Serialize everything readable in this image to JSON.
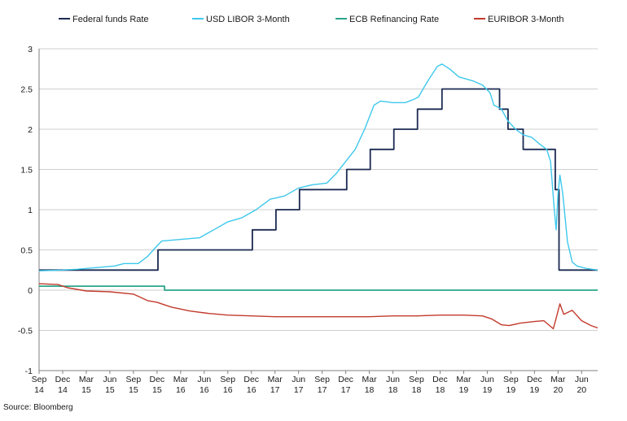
{
  "chart_data": {
    "type": "line",
    "source": "Source: Bloomberg",
    "ylim": [
      -1,
      3
    ],
    "yticks": [
      -1,
      -0.5,
      0,
      0.5,
      1,
      1.5,
      2,
      2.5,
      3
    ],
    "ytick_labels": [
      "-1",
      "-0.5",
      "0",
      "0.5",
      "1",
      "1.5",
      "2",
      "2.5",
      "3"
    ],
    "xlim": [
      2014.7,
      2020.62
    ],
    "grid": true,
    "legend_position": "top",
    "x_ticks": [
      {
        "x": 2014.7,
        "month": "Sep",
        "year": "14"
      },
      {
        "x": 2014.95,
        "month": "Dec",
        "year": "14"
      },
      {
        "x": 2015.2,
        "month": "Mar",
        "year": "15"
      },
      {
        "x": 2015.45,
        "month": "Jun",
        "year": "15"
      },
      {
        "x": 2015.7,
        "month": "Sep",
        "year": "15"
      },
      {
        "x": 2015.95,
        "month": "Dec",
        "year": "15"
      },
      {
        "x": 2016.2,
        "month": "Mar",
        "year": "16"
      },
      {
        "x": 2016.45,
        "month": "Jun",
        "year": "16"
      },
      {
        "x": 2016.7,
        "month": "Sep",
        "year": "16"
      },
      {
        "x": 2016.95,
        "month": "Dec",
        "year": "16"
      },
      {
        "x": 2017.2,
        "month": "Mar",
        "year": "17"
      },
      {
        "x": 2017.45,
        "month": "Jun",
        "year": "17"
      },
      {
        "x": 2017.7,
        "month": "Sep",
        "year": "17"
      },
      {
        "x": 2017.95,
        "month": "Dec",
        "year": "17"
      },
      {
        "x": 2018.2,
        "month": "Mar",
        "year": "18"
      },
      {
        "x": 2018.45,
        "month": "Jun",
        "year": "18"
      },
      {
        "x": 2018.7,
        "month": "Sep",
        "year": "18"
      },
      {
        "x": 2018.95,
        "month": "Dec",
        "year": "18"
      },
      {
        "x": 2019.2,
        "month": "Mar",
        "year": "19"
      },
      {
        "x": 2019.45,
        "month": "Jun",
        "year": "19"
      },
      {
        "x": 2019.7,
        "month": "Sep",
        "year": "19"
      },
      {
        "x": 2019.95,
        "month": "Dec",
        "year": "19"
      },
      {
        "x": 2020.2,
        "month": "Mar",
        "year": "20"
      },
      {
        "x": 2020.45,
        "month": "Jun",
        "year": "20"
      }
    ],
    "series": [
      {
        "name": "Federal funds Rate",
        "color": "#1b2a52",
        "step": true,
        "points": [
          [
            2014.7,
            0.25
          ],
          [
            2015.96,
            0.5
          ],
          [
            2016.96,
            0.75
          ],
          [
            2017.21,
            1.0
          ],
          [
            2017.46,
            1.25
          ],
          [
            2017.96,
            1.5
          ],
          [
            2018.21,
            1.75
          ],
          [
            2018.46,
            2.0
          ],
          [
            2018.71,
            2.25
          ],
          [
            2018.97,
            2.5
          ],
          [
            2019.58,
            2.25
          ],
          [
            2019.67,
            2.0
          ],
          [
            2019.83,
            1.75
          ],
          [
            2020.17,
            1.25
          ],
          [
            2020.21,
            0.25
          ],
          [
            2020.62,
            0.25
          ]
        ]
      },
      {
        "name": "USD LIBOR 3-Month",
        "color": "#3ec8ec",
        "step": false,
        "points": [
          [
            2014.7,
            0.24
          ],
          [
            2014.95,
            0.25
          ],
          [
            2015.1,
            0.26
          ],
          [
            2015.3,
            0.28
          ],
          [
            2015.5,
            0.3
          ],
          [
            2015.6,
            0.33
          ],
          [
            2015.75,
            0.33
          ],
          [
            2015.85,
            0.42
          ],
          [
            2015.95,
            0.55
          ],
          [
            2016.0,
            0.61
          ],
          [
            2016.2,
            0.63
          ],
          [
            2016.4,
            0.65
          ],
          [
            2016.55,
            0.75
          ],
          [
            2016.7,
            0.85
          ],
          [
            2016.85,
            0.9
          ],
          [
            2017.0,
            1.0
          ],
          [
            2017.15,
            1.13
          ],
          [
            2017.3,
            1.17
          ],
          [
            2017.45,
            1.27
          ],
          [
            2017.6,
            1.31
          ],
          [
            2017.75,
            1.33
          ],
          [
            2017.85,
            1.45
          ],
          [
            2017.95,
            1.6
          ],
          [
            2018.05,
            1.75
          ],
          [
            2018.15,
            2.0
          ],
          [
            2018.25,
            2.3
          ],
          [
            2018.32,
            2.35
          ],
          [
            2018.45,
            2.33
          ],
          [
            2018.58,
            2.33
          ],
          [
            2018.67,
            2.37
          ],
          [
            2018.72,
            2.4
          ],
          [
            2018.82,
            2.6
          ],
          [
            2018.92,
            2.78
          ],
          [
            2018.97,
            2.81
          ],
          [
            2019.05,
            2.75
          ],
          [
            2019.15,
            2.65
          ],
          [
            2019.3,
            2.6
          ],
          [
            2019.4,
            2.55
          ],
          [
            2019.48,
            2.45
          ],
          [
            2019.52,
            2.3
          ],
          [
            2019.6,
            2.25
          ],
          [
            2019.67,
            2.1
          ],
          [
            2019.75,
            2.0
          ],
          [
            2019.83,
            1.93
          ],
          [
            2019.92,
            1.9
          ],
          [
            2020.0,
            1.82
          ],
          [
            2020.08,
            1.75
          ],
          [
            2020.12,
            1.6
          ],
          [
            2020.16,
            1.0
          ],
          [
            2020.18,
            0.75
          ],
          [
            2020.2,
            1.2
          ],
          [
            2020.22,
            1.43
          ],
          [
            2020.25,
            1.2
          ],
          [
            2020.3,
            0.6
          ],
          [
            2020.35,
            0.35
          ],
          [
            2020.4,
            0.3
          ],
          [
            2020.5,
            0.27
          ],
          [
            2020.62,
            0.25
          ]
        ]
      },
      {
        "name": "ECB Refinancing Rate",
        "color": "#2aa58a",
        "step": true,
        "points": [
          [
            2014.7,
            0.05
          ],
          [
            2016.03,
            0.0
          ],
          [
            2020.62,
            0.0
          ]
        ]
      },
      {
        "name": "EURIBOR 3-Month",
        "color": "#c23a2c",
        "step": false,
        "points": [
          [
            2014.7,
            0.08
          ],
          [
            2014.9,
            0.07
          ],
          [
            2015.0,
            0.03
          ],
          [
            2015.2,
            -0.01
          ],
          [
            2015.45,
            -0.02
          ],
          [
            2015.7,
            -0.05
          ],
          [
            2015.85,
            -0.13
          ],
          [
            2015.95,
            -0.15
          ],
          [
            2016.1,
            -0.21
          ],
          [
            2016.3,
            -0.26
          ],
          [
            2016.5,
            -0.29
          ],
          [
            2016.7,
            -0.31
          ],
          [
            2016.95,
            -0.32
          ],
          [
            2017.2,
            -0.33
          ],
          [
            2017.45,
            -0.33
          ],
          [
            2017.7,
            -0.33
          ],
          [
            2017.95,
            -0.33
          ],
          [
            2018.2,
            -0.33
          ],
          [
            2018.45,
            -0.32
          ],
          [
            2018.7,
            -0.32
          ],
          [
            2018.95,
            -0.31
          ],
          [
            2019.2,
            -0.31
          ],
          [
            2019.4,
            -0.32
          ],
          [
            2019.5,
            -0.36
          ],
          [
            2019.6,
            -0.43
          ],
          [
            2019.68,
            -0.44
          ],
          [
            2019.8,
            -0.41
          ],
          [
            2019.95,
            -0.39
          ],
          [
            2020.05,
            -0.38
          ],
          [
            2020.15,
            -0.48
          ],
          [
            2020.18,
            -0.35
          ],
          [
            2020.22,
            -0.17
          ],
          [
            2020.26,
            -0.3
          ],
          [
            2020.35,
            -0.25
          ],
          [
            2020.45,
            -0.38
          ],
          [
            2020.55,
            -0.44
          ],
          [
            2020.62,
            -0.47
          ]
        ]
      }
    ]
  }
}
